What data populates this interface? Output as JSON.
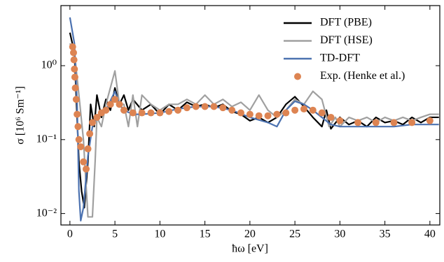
{
  "chart_data": {
    "type": "line",
    "xlabel": "ħω [eV]",
    "ylabel": "σ [10⁶ Sm⁻¹]",
    "xlim": [
      -1,
      41.1
    ],
    "ylim": [
      0.007,
      6.5
    ],
    "log_y": true,
    "legend": "upper right",
    "xticks": [
      0,
      5,
      10,
      15,
      20,
      25,
      30,
      35,
      40
    ],
    "yticks": [
      {
        "value": 0.01,
        "label": "10⁻²"
      },
      {
        "value": 0.1,
        "label": "10⁻¹"
      },
      {
        "value": 1,
        "label": "10⁰"
      }
    ],
    "series": [
      {
        "name": "DFT (PBE)",
        "type": "line",
        "color": "#000000",
        "x": [
          0,
          0.5,
          1.0,
          1.3,
          1.6,
          2,
          2.3,
          2.7,
          3,
          3.5,
          4,
          4.5,
          5,
          5.5,
          6,
          6.5,
          7,
          8,
          9,
          10,
          11,
          12,
          13,
          14,
          15,
          16,
          17,
          18,
          19,
          20,
          21,
          22,
          23,
          24,
          25,
          26,
          27,
          28,
          28.5,
          29,
          30,
          31,
          32,
          33,
          34,
          35,
          36,
          37,
          38,
          39,
          40,
          41
        ],
        "values": [
          2.8,
          1.5,
          0.05,
          0.02,
          0.012,
          0.05,
          0.3,
          0.15,
          0.4,
          0.2,
          0.35,
          0.25,
          0.5,
          0.3,
          0.4,
          0.25,
          0.35,
          0.25,
          0.3,
          0.22,
          0.3,
          0.25,
          0.32,
          0.28,
          0.3,
          0.27,
          0.3,
          0.24,
          0.22,
          0.18,
          0.2,
          0.17,
          0.2,
          0.3,
          0.38,
          0.28,
          0.2,
          0.15,
          0.25,
          0.14,
          0.2,
          0.16,
          0.18,
          0.15,
          0.2,
          0.17,
          0.18,
          0.16,
          0.2,
          0.17,
          0.2,
          0.2
        ]
      },
      {
        "name": "DFT (HSE)",
        "type": "line",
        "color": "#a0a0a0",
        "x": [
          0,
          0.5,
          1,
          1.5,
          2,
          2.5,
          2.8,
          3,
          3.5,
          4,
          5,
          5.5,
          6,
          6.5,
          7,
          7.5,
          8,
          9,
          10,
          11,
          12,
          13,
          14,
          15,
          16,
          17,
          18,
          19,
          20,
          21,
          22,
          23,
          24,
          25,
          26,
          27,
          28,
          28.8,
          29.5,
          30,
          31,
          32,
          33,
          34,
          35,
          36,
          37,
          38,
          39,
          40,
          41
        ],
        "values": [
          2,
          1.5,
          0.4,
          0.1,
          0.009,
          0.009,
          0.05,
          0.2,
          0.15,
          0.3,
          0.85,
          0.3,
          0.3,
          0.15,
          0.4,
          0.15,
          0.4,
          0.3,
          0.25,
          0.3,
          0.3,
          0.35,
          0.3,
          0.4,
          0.3,
          0.35,
          0.28,
          0.32,
          0.25,
          0.4,
          0.25,
          0.2,
          0.25,
          0.35,
          0.3,
          0.45,
          0.35,
          0.15,
          0.2,
          0.15,
          0.2,
          0.18,
          0.2,
          0.17,
          0.2,
          0.18,
          0.2,
          0.18,
          0.2,
          0.22,
          0.22
        ]
      },
      {
        "name": "TD-DFT",
        "type": "line",
        "color": "#4c72b0",
        "x": [
          0,
          0.5,
          0.8,
          1.0,
          1.2,
          1.5,
          2,
          2.5,
          3,
          4,
          5,
          5.5,
          6,
          7,
          8,
          10,
          12,
          14,
          16,
          18,
          20,
          22,
          23,
          24,
          25,
          26,
          27,
          28,
          29,
          30,
          32,
          34,
          36,
          38,
          40,
          41
        ],
        "values": [
          4.5,
          2,
          0.3,
          0.02,
          0.008,
          0.012,
          0.06,
          0.15,
          0.2,
          0.25,
          0.45,
          0.3,
          0.25,
          0.22,
          0.22,
          0.23,
          0.26,
          0.28,
          0.28,
          0.25,
          0.2,
          0.17,
          0.15,
          0.25,
          0.33,
          0.3,
          0.25,
          0.2,
          0.16,
          0.15,
          0.15,
          0.15,
          0.15,
          0.16,
          0.16,
          0.16
        ]
      },
      {
        "name": "Exp. (Henke et al.)",
        "type": "scatter",
        "color": "#dd8452",
        "x": [
          0.3,
          0.4,
          0.45,
          0.5,
          0.55,
          0.6,
          0.7,
          0.8,
          0.9,
          1.0,
          1.2,
          1.5,
          1.8,
          2.0,
          2.2,
          2.5,
          3,
          3.5,
          4,
          4.5,
          5,
          5.5,
          6,
          7,
          8,
          9,
          10,
          11,
          12,
          13,
          14,
          15,
          16,
          17,
          18,
          19,
          20,
          21,
          22,
          23,
          24,
          25,
          26,
          27,
          28,
          29,
          30,
          32,
          34,
          36,
          38,
          40
        ],
        "values": [
          1.8,
          1.5,
          1.2,
          0.9,
          0.7,
          0.5,
          0.35,
          0.22,
          0.15,
          0.1,
          0.08,
          0.05,
          0.04,
          0.075,
          0.12,
          0.17,
          0.2,
          0.23,
          0.25,
          0.3,
          0.35,
          0.3,
          0.25,
          0.23,
          0.23,
          0.23,
          0.23,
          0.24,
          0.25,
          0.27,
          0.28,
          0.28,
          0.28,
          0.27,
          0.25,
          0.23,
          0.22,
          0.21,
          0.21,
          0.22,
          0.23,
          0.25,
          0.26,
          0.25,
          0.23,
          0.2,
          0.18,
          0.17,
          0.17,
          0.17,
          0.17,
          0.18
        ]
      }
    ]
  }
}
